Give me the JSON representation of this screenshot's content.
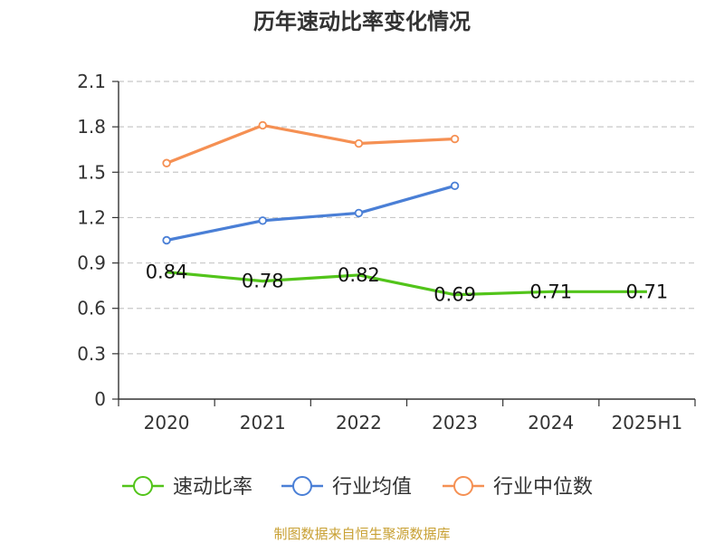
{
  "title": "历年速动比率变化情况",
  "source": "制图数据来自恒生聚源数据库",
  "chart_data": {
    "type": "line",
    "title": "历年速动比率变化情况",
    "xlabel": "",
    "ylabel": "",
    "categories": [
      "2020",
      "2021",
      "2022",
      "2023",
      "2024",
      "2025H1"
    ],
    "y_ticks": [
      "0",
      "0.3",
      "0.6",
      "0.9",
      "1.2",
      "1.5",
      "1.8",
      "2.1"
    ],
    "ylim": [
      0,
      2.1
    ],
    "grid": "horizontal dashed",
    "legend_position": "bottom",
    "series": [
      {
        "name": "速动比率",
        "color": "#52c41a",
        "values": [
          0.84,
          0.78,
          0.82,
          0.69,
          0.71,
          0.71
        ],
        "labels": [
          "0.84",
          "0.78",
          "0.82",
          "0.69",
          "0.71",
          "0.71"
        ],
        "show_markers": false
      },
      {
        "name": "行业均值",
        "color": "#4a7fd6",
        "values": [
          1.05,
          1.18,
          1.23,
          1.41,
          null,
          null
        ],
        "show_markers": true
      },
      {
        "name": "行业中位数",
        "color": "#f59053",
        "values": [
          1.56,
          1.81,
          1.69,
          1.72,
          null,
          null
        ],
        "show_markers": true
      }
    ]
  }
}
